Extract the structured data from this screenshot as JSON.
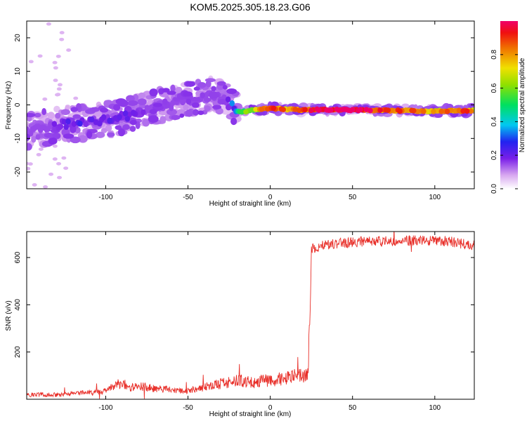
{
  "title": "KOM5.2025.305.18.23.G06",
  "chart_data": [
    {
      "type": "heatmap",
      "xlabel": "Height of straight line (km)",
      "ylabel": "Frequency (Hz)",
      "xlim": [
        -148,
        124
      ],
      "ylim": [
        -25,
        25
      ],
      "xticks": [
        -100,
        -50,
        0,
        50,
        100
      ],
      "yticks": [
        -20,
        -10,
        0,
        10,
        20
      ],
      "colorbar": {
        "label": "Normalized spectral amplitude",
        "ticks": [
          0.0,
          0.2,
          0.4,
          0.6,
          0.8
        ],
        "range": [
          0,
          1
        ]
      },
      "ridge": {
        "x": [
          -148,
          -130,
          -110,
          -95,
          -85,
          -75,
          -65,
          -55,
          -45,
          -35,
          -25,
          -20,
          -15,
          -10,
          -5,
          0,
          10,
          20,
          30,
          40,
          50,
          60,
          70,
          80,
          90,
          100,
          110,
          124
        ],
        "freq": [
          -8,
          -6,
          -5,
          -4,
          -3,
          -1,
          0,
          1,
          2,
          3,
          1,
          -2,
          -2,
          -1.5,
          -1.2,
          -1,
          -1.3,
          -1.5,
          -1.4,
          -1.5,
          -1.5,
          -1.5,
          -1.6,
          -1.7,
          -1.8,
          -1.9,
          -1.8,
          -1.7
        ],
        "amplitude": [
          0.1,
          0.15,
          0.2,
          0.2,
          0.15,
          0.12,
          0.12,
          0.12,
          0.12,
          0.1,
          0.15,
          0.45,
          0.55,
          0.6,
          0.75,
          0.85,
          0.8,
          0.85,
          0.9,
          0.95,
          0.95,
          0.92,
          0.85,
          0.8,
          0.78,
          0.75,
          0.8,
          0.8
        ]
      }
    },
    {
      "type": "line",
      "xlabel": "Height of straight line (km)",
      "ylabel": "SNR (v/v)",
      "xlim": [
        -148,
        124
      ],
      "ylim": [
        0,
        710
      ],
      "xticks": [
        -100,
        -50,
        0,
        50,
        100
      ],
      "yticks": [
        200,
        400,
        600
      ],
      "color": "#e8302a",
      "series": [
        {
          "x": [
            -148,
            -130,
            -120,
            -110,
            -100,
            -95,
            -90,
            -85,
            -80,
            -70,
            -60,
            -50,
            -45,
            -40,
            -35,
            -30,
            -25,
            -20,
            -15,
            -10,
            -5,
            0,
            5,
            10,
            15,
            20,
            23,
            24,
            25,
            26,
            30,
            40,
            50,
            60,
            70,
            80,
            90,
            95,
            100,
            105,
            110,
            115,
            124
          ],
          "y": [
            20,
            18,
            25,
            30,
            35,
            55,
            70,
            50,
            55,
            45,
            40,
            35,
            45,
            50,
            60,
            65,
            70,
            80,
            75,
            70,
            80,
            80,
            85,
            90,
            95,
            100,
            105,
            300,
            630,
            640,
            650,
            660,
            665,
            668,
            670,
            670,
            672,
            675,
            672,
            670,
            668,
            660,
            650
          ]
        }
      ]
    }
  ]
}
